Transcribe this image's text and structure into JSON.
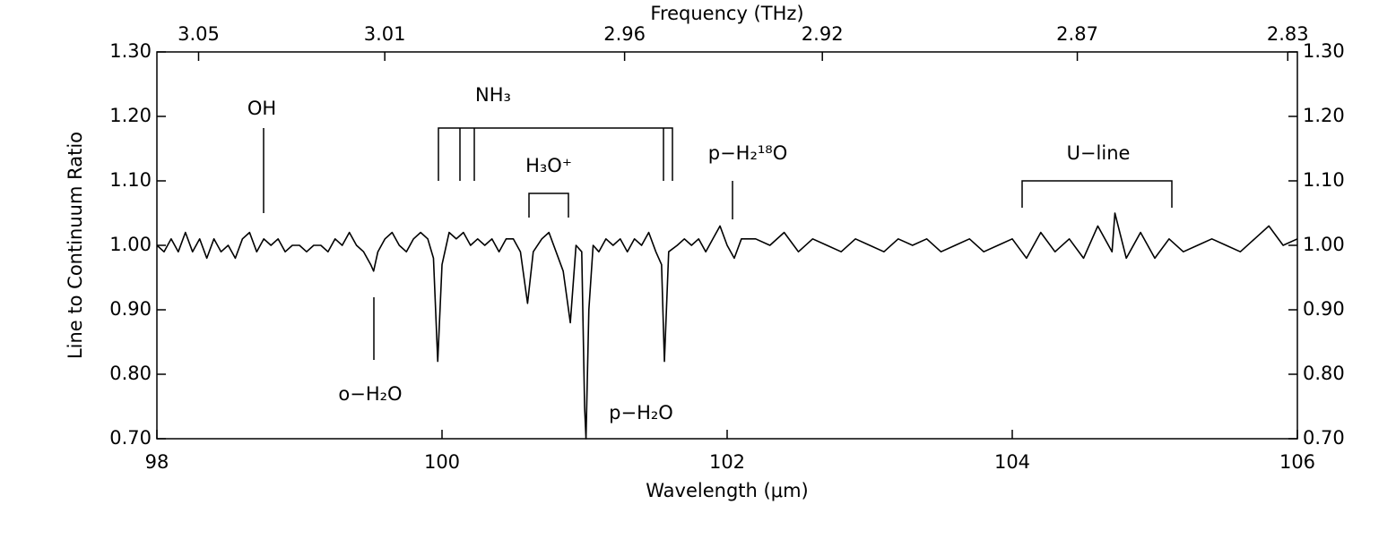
{
  "chart_data": {
    "type": "line",
    "xlabel": "Wavelength (μm)",
    "ylabel": "Line to Continuum Ratio",
    "x2label": "Frequency (THz)",
    "x": [
      98.0,
      98.05,
      98.1,
      98.15,
      98.2,
      98.25,
      98.3,
      98.35,
      98.4,
      98.45,
      98.5,
      98.55,
      98.6,
      98.65,
      98.7,
      98.75,
      98.8,
      98.85,
      98.9,
      98.95,
      99.0,
      99.05,
      99.1,
      99.15,
      99.2,
      99.25,
      99.3,
      99.35,
      99.4,
      99.45,
      99.5,
      99.52,
      99.55,
      99.6,
      99.65,
      99.7,
      99.75,
      99.8,
      99.85,
      99.9,
      99.94,
      99.97,
      100.0,
      100.05,
      100.1,
      100.15,
      100.2,
      100.25,
      100.3,
      100.35,
      100.4,
      100.45,
      100.5,
      100.55,
      100.6,
      100.64,
      100.7,
      100.75,
      100.8,
      100.85,
      100.9,
      100.94,
      100.98,
      101.0,
      101.01,
      101.03,
      101.06,
      101.1,
      101.15,
      101.2,
      101.25,
      101.3,
      101.35,
      101.4,
      101.45,
      101.5,
      101.54,
      101.56,
      101.59,
      101.65,
      101.7,
      101.75,
      101.8,
      101.85,
      101.9,
      101.95,
      102.0,
      102.05,
      102.1,
      102.2,
      102.3,
      102.4,
      102.5,
      102.6,
      102.7,
      102.8,
      102.9,
      103.0,
      103.1,
      103.2,
      103.3,
      103.4,
      103.5,
      103.6,
      103.7,
      103.8,
      103.9,
      104.0,
      104.1,
      104.2,
      104.3,
      104.4,
      104.5,
      104.6,
      104.7,
      104.72,
      104.8,
      104.9,
      105.0,
      105.1,
      105.2,
      105.3,
      105.4,
      105.5,
      105.6,
      105.7,
      105.8,
      105.9,
      106.0
    ],
    "series": [
      {
        "color": "#000000",
        "values": [
          1.0,
          0.99,
          1.01,
          0.99,
          1.02,
          0.99,
          1.01,
          0.98,
          1.01,
          0.99,
          1.0,
          0.98,
          1.01,
          1.02,
          0.99,
          1.01,
          1.0,
          1.01,
          0.99,
          1.0,
          1.0,
          0.99,
          1.0,
          1.0,
          0.99,
          1.01,
          1.0,
          1.02,
          1.0,
          0.99,
          0.97,
          0.96,
          0.99,
          1.01,
          1.02,
          1.0,
          0.99,
          1.01,
          1.02,
          1.01,
          0.98,
          0.82,
          0.97,
          1.02,
          1.01,
          1.02,
          1.0,
          1.01,
          1.0,
          1.01,
          0.99,
          1.01,
          1.01,
          0.99,
          0.91,
          0.99,
          1.01,
          1.02,
          0.99,
          0.96,
          0.88,
          1.0,
          0.99,
          0.75,
          0.7,
          0.9,
          1.0,
          0.99,
          1.01,
          1.0,
          1.01,
          0.99,
          1.01,
          1.0,
          1.02,
          0.99,
          0.97,
          0.82,
          0.99,
          1.0,
          1.01,
          1.0,
          1.01,
          0.99,
          1.01,
          1.03,
          1.0,
          0.98,
          1.01,
          1.01,
          1.0,
          1.02,
          0.99,
          1.01,
          1.0,
          0.99,
          1.01,
          1.0,
          0.99,
          1.01,
          1.0,
          1.01,
          0.99,
          1.0,
          1.01,
          0.99,
          1.0,
          1.01,
          0.98,
          1.02,
          0.99,
          1.01,
          0.98,
          1.03,
          0.99,
          1.05,
          0.98,
          1.02,
          0.98,
          1.01,
          0.99,
          1.0,
          1.01,
          1.0,
          0.99,
          1.01,
          1.03,
          1.0,
          1.01
        ]
      }
    ],
    "xlim": [
      98,
      106
    ],
    "xticks": [
      98,
      100,
      102,
      104,
      106
    ],
    "ylim": [
      0.7,
      1.3
    ],
    "yticks": [
      {
        "value": 0.7,
        "label": "0.70"
      },
      {
        "value": 0.8,
        "label": "0.80"
      },
      {
        "value": 0.9,
        "label": "0.90"
      },
      {
        "value": 1.0,
        "label": "1.00"
      },
      {
        "value": 1.1,
        "label": "1.10"
      },
      {
        "value": 1.2,
        "label": "1.20"
      },
      {
        "value": 1.3,
        "label": "1.30"
      }
    ],
    "x2scale": "reciprocal",
    "x2lim": [
      3.0591,
      2.8282
    ],
    "x2ticks": [
      3.05,
      3.01,
      2.96,
      2.92,
      2.87,
      2.83
    ],
    "annotations": [
      "OH",
      "NH₃",
      "H₃O⁺",
      "p−H₂¹⁸O",
      "U−line",
      "o−H₂O",
      "p−H₂O"
    ]
  }
}
